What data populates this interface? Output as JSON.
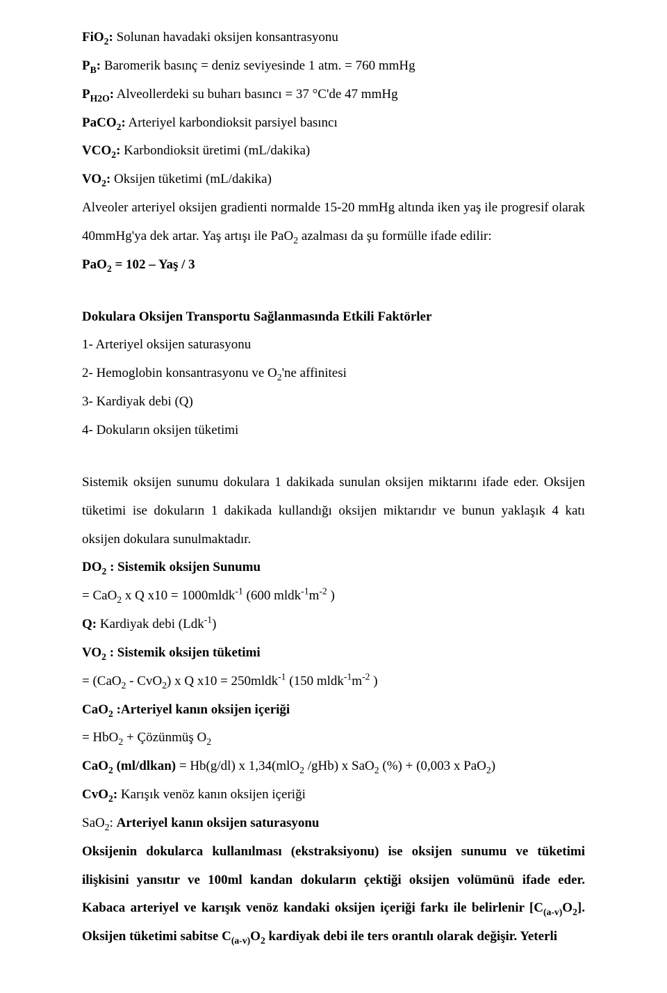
{
  "defs": {
    "fio2": {
      "term": "FiO<sub>2</sub>:",
      "text": " Solunan havadaki oksijen konsantrasyonu"
    },
    "pb": {
      "term": "P<sub>B</sub>:",
      "text": " Baromerik basınç = deniz seviyesinde 1 atm. = 760 mmHg"
    },
    "ph2o": {
      "term": "P<sub>H2O</sub>:",
      "text": " Alveollerdeki su buharı basıncı = 37 °C'de 47 mmHg"
    },
    "paco2": {
      "term": "PaCO<sub>2</sub>:",
      "text": " Arteriyel karbondioksit parsiyel basıncı"
    },
    "vco2": {
      "term": "VCO<sub>2</sub>:",
      "text": " Karbondioksit üretimi (mL/dakika)"
    },
    "vo2": {
      "term": "VO<sub>2</sub>:",
      "text": " Oksijen tüketimi (mL/dakika)"
    }
  },
  "alveoler_para": "Alveoler arteriyel oksijen gradienti normalde 15-20 mmHg altında iken yaş ile progresif olarak 40mmHg'ya dek artar. Yaş artışı ile PaO<sub>2</sub> azalması da şu formülle ifade edilir:",
  "pao2_formula": "PaO<sub>2</sub> = 102 – Yaş / 3",
  "section_heading": "Dokulara  Oksijen Transportu Sağlanmasında Etkili Faktörler",
  "factors": {
    "f1": "1- Arteriyel oksijen saturasyonu",
    "f2": "2- Hemoglobin konsantrasyonu ve O<sub>2</sub>'ne affinitesi",
    "f3": "3- Kardiyak debi (Q)",
    "f4": "4- Dokuların oksijen tüketimi"
  },
  "oxy_para": "Sistemik oksijen sunumu  dokulara 1 dakikada sunulan oksijen miktarını ifade eder. Oksijen tüketimi ise dokuların 1 dakikada kullandığı oksijen miktarıdır ve bunun yaklaşık 4 katı oksijen dokulara sunulmaktadır.",
  "do2": {
    "label": "DO<sub>2</sub> : Sistemik oksijen Sunumu",
    "formula": "= CaO<sub>2</sub> x Q x10 = 1000mldk<sup>-1</sup> (600 mldk<sup>-1</sup>m<sup>-2</sup> )"
  },
  "q_line": "<span class=\"bold\">Q:</span> Kardiyak debi (Ldk<sup>-1</sup>)",
  "vo2_sys": {
    "label": "VO<sub>2</sub> : Sistemik oksijen tüketimi",
    "formula": "= (CaO<sub>2</sub> - CvO<sub>2</sub>) x Q x10 = 250mldk<sup>-1</sup> (150 mldk<sup>-1</sup>m<sup>-2</sup> )"
  },
  "cao2_label": "CaO<sub>2</sub> :Arteriyel kanın oksijen içeriği",
  "cao2_eq1": "= HbO<sub>2</sub> + Çözünmüş O<sub>2</sub>",
  "cao2_eq2": "<span class=\"bold\">CaO<sub>2</sub> (ml/dlkan)</span> = Hb(g/dl) x 1,34(mlO<sub>2</sub> /gHb) x SaO<sub>2</sub> (%) +  (0,003 x PaO<sub>2</sub>)",
  "cvo2": "<span class=\"bold\">CvO<sub>2</sub>:</span> Karışık venöz kanın oksijen içeriği",
  "sao2": "SaO<sub>2</sub>: <span class=\"bold\">Arteriyel kanın oksijen saturasyonu</span>",
  "final_para": "Oksijenin dokularca kullanılması (ekstraksiyonu) ise oksijen sunumu ve tüketimi ilişkisini yansıtır ve 100ml kandan dokuların çektiği oksijen volümünü ifade eder. Kabaca arteriyel ve karışık venöz kandaki oksijen içeriği farkı ile belirlenir [C<sub>(a-v)</sub>O<sub>2</sub>]. Oksijen tüketimi sabitse C<sub>(a-v)</sub>O<sub>2</sub> kardiyak debi ile ters orantılı olarak değişir. Yeterli"
}
